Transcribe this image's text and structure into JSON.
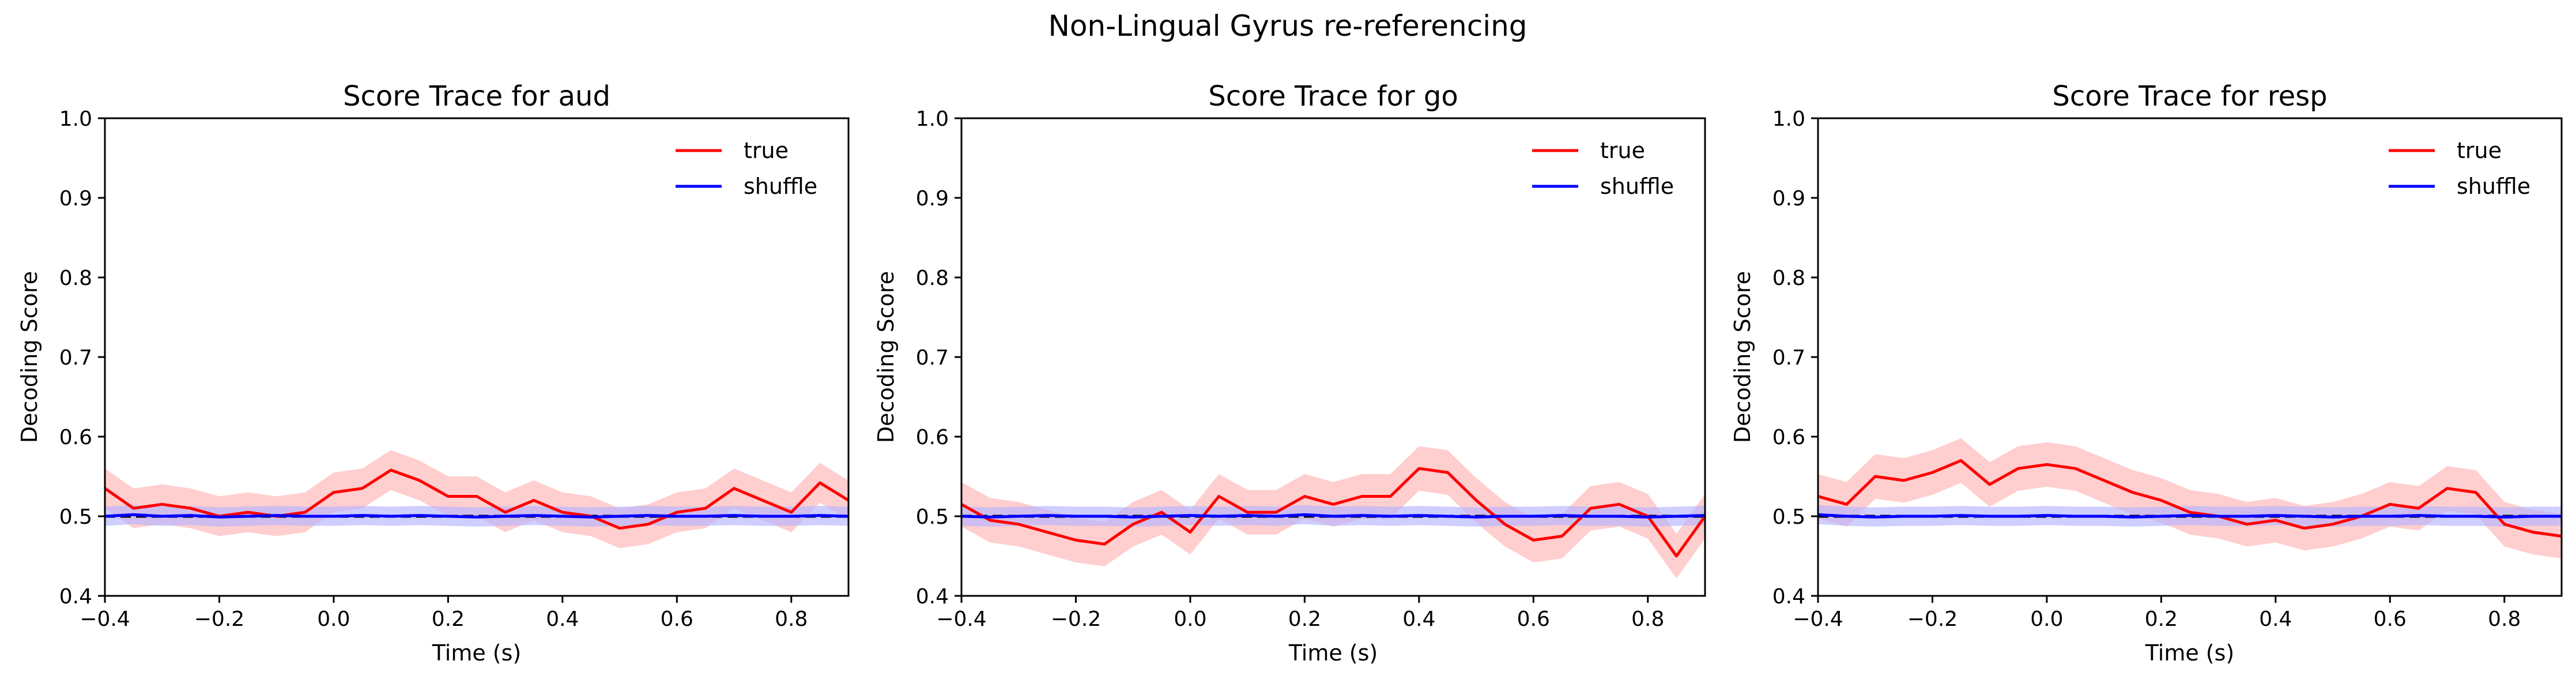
{
  "figure": {
    "suptitle": "Non-Lingual Gyrus re-referencing"
  },
  "legend": {
    "items": [
      {
        "label": "true",
        "color": "#ff0000"
      },
      {
        "label": "shuffle",
        "color": "#0000ff"
      }
    ],
    "placement": "top-right"
  },
  "colors": {
    "true_line": "#ff0000",
    "true_band": "#ffb3b3",
    "shuffle_line": "#0000ff",
    "shuffle_band": "#b3b3ff",
    "chance_line": "#000000"
  },
  "chart_data": [
    {
      "type": "line",
      "title": "Score Trace for aud",
      "xlabel": "Time (s)",
      "ylabel": "Decoding Score",
      "xlim": [
        -0.4,
        0.9
      ],
      "ylim": [
        0.4,
        1.0
      ],
      "xticks": [
        -0.4,
        -0.2,
        0.0,
        0.2,
        0.4,
        0.6,
        0.8
      ],
      "xtick_labels": [
        "−0.4",
        "−0.2",
        "0.0",
        "0.2",
        "0.4",
        "0.6",
        "0.8"
      ],
      "yticks": [
        0.4,
        0.5,
        0.6,
        0.7,
        0.8,
        0.9,
        1.0
      ],
      "ytick_labels": [
        "0.4",
        "0.5",
        "0.6",
        "0.7",
        "0.8",
        "0.9",
        "1.0"
      ],
      "chance_level": 0.5,
      "x": [
        -0.4,
        -0.35,
        -0.3,
        -0.25,
        -0.2,
        -0.15,
        -0.1,
        -0.05,
        0.0,
        0.05,
        0.1,
        0.15,
        0.2,
        0.25,
        0.3,
        0.35,
        0.4,
        0.45,
        0.5,
        0.55,
        0.6,
        0.65,
        0.7,
        0.75,
        0.8,
        0.85,
        0.9
      ],
      "series": [
        {
          "name": "true",
          "values": [
            0.535,
            0.51,
            0.515,
            0.51,
            0.5,
            0.505,
            0.5,
            0.505,
            0.53,
            0.535,
            0.558,
            0.545,
            0.525,
            0.525,
            0.505,
            0.52,
            0.505,
            0.5,
            0.485,
            0.49,
            0.505,
            0.51,
            0.535,
            0.52,
            0.505,
            0.542,
            0.52
          ],
          "band": 0.025
        },
        {
          "name": "shuffle",
          "values": [
            0.5,
            0.502,
            0.5,
            0.501,
            0.499,
            0.5,
            0.501,
            0.5,
            0.5,
            0.501,
            0.5,
            0.501,
            0.5,
            0.499,
            0.5,
            0.501,
            0.5,
            0.499,
            0.5,
            0.501,
            0.5,
            0.5,
            0.501,
            0.5,
            0.5,
            0.501,
            0.5
          ],
          "band": 0.012
        }
      ]
    },
    {
      "type": "line",
      "title": "Score Trace for go",
      "xlabel": "Time (s)",
      "ylabel": "Decoding Score",
      "xlim": [
        -0.4,
        0.9
      ],
      "ylim": [
        0.4,
        1.0
      ],
      "xticks": [
        -0.4,
        -0.2,
        0.0,
        0.2,
        0.4,
        0.6,
        0.8
      ],
      "xtick_labels": [
        "−0.4",
        "−0.2",
        "0.0",
        "0.2",
        "0.4",
        "0.6",
        "0.8"
      ],
      "yticks": [
        0.4,
        0.5,
        0.6,
        0.7,
        0.8,
        0.9,
        1.0
      ],
      "ytick_labels": [
        "0.4",
        "0.5",
        "0.6",
        "0.7",
        "0.8",
        "0.9",
        "1.0"
      ],
      "chance_level": 0.5,
      "x": [
        -0.4,
        -0.35,
        -0.3,
        -0.25,
        -0.2,
        -0.15,
        -0.1,
        -0.05,
        0.0,
        0.05,
        0.1,
        0.15,
        0.2,
        0.25,
        0.3,
        0.35,
        0.4,
        0.45,
        0.5,
        0.55,
        0.6,
        0.65,
        0.7,
        0.75,
        0.8,
        0.85,
        0.9
      ],
      "series": [
        {
          "name": "true",
          "values": [
            0.515,
            0.495,
            0.49,
            0.48,
            0.47,
            0.465,
            0.49,
            0.505,
            0.48,
            0.525,
            0.505,
            0.505,
            0.525,
            0.515,
            0.525,
            0.525,
            0.56,
            0.555,
            0.52,
            0.49,
            0.47,
            0.475,
            0.51,
            0.515,
            0.5,
            0.45,
            0.5
          ],
          "band": 0.028
        },
        {
          "name": "shuffle",
          "values": [
            0.5,
            0.499,
            0.5,
            0.501,
            0.5,
            0.5,
            0.499,
            0.5,
            0.501,
            0.5,
            0.501,
            0.5,
            0.502,
            0.5,
            0.501,
            0.5,
            0.501,
            0.5,
            0.499,
            0.5,
            0.5,
            0.501,
            0.5,
            0.5,
            0.499,
            0.5,
            0.501
          ],
          "band": 0.012
        }
      ]
    },
    {
      "type": "line",
      "title": "Score Trace for resp",
      "xlabel": "Time (s)",
      "ylabel": "Decoding Score",
      "xlim": [
        -0.4,
        0.9
      ],
      "ylim": [
        0.4,
        1.0
      ],
      "xticks": [
        -0.4,
        -0.2,
        0.0,
        0.2,
        0.4,
        0.6,
        0.8
      ],
      "xtick_labels": [
        "−0.4",
        "−0.2",
        "0.0",
        "0.2",
        "0.4",
        "0.6",
        "0.8"
      ],
      "yticks": [
        0.4,
        0.5,
        0.6,
        0.7,
        0.8,
        0.9,
        1.0
      ],
      "ytick_labels": [
        "0.4",
        "0.5",
        "0.6",
        "0.7",
        "0.8",
        "0.9",
        "1.0"
      ],
      "chance_level": 0.5,
      "x": [
        -0.4,
        -0.35,
        -0.3,
        -0.25,
        -0.2,
        -0.15,
        -0.1,
        -0.05,
        0.0,
        0.05,
        0.1,
        0.15,
        0.2,
        0.25,
        0.3,
        0.35,
        0.4,
        0.45,
        0.5,
        0.55,
        0.6,
        0.65,
        0.7,
        0.75,
        0.8,
        0.85,
        0.9
      ],
      "series": [
        {
          "name": "true",
          "values": [
            0.525,
            0.515,
            0.55,
            0.545,
            0.555,
            0.57,
            0.54,
            0.56,
            0.565,
            0.56,
            0.545,
            0.53,
            0.52,
            0.505,
            0.5,
            0.49,
            0.495,
            0.485,
            0.49,
            0.5,
            0.515,
            0.51,
            0.535,
            0.53,
            0.49,
            0.48,
            0.475
          ],
          "band": 0.028
        },
        {
          "name": "shuffle",
          "values": [
            0.502,
            0.5,
            0.499,
            0.5,
            0.5,
            0.501,
            0.5,
            0.5,
            0.501,
            0.5,
            0.5,
            0.499,
            0.5,
            0.501,
            0.5,
            0.5,
            0.501,
            0.5,
            0.499,
            0.5,
            0.5,
            0.501,
            0.5,
            0.5,
            0.499,
            0.5,
            0.5
          ],
          "band": 0.012
        }
      ]
    }
  ]
}
